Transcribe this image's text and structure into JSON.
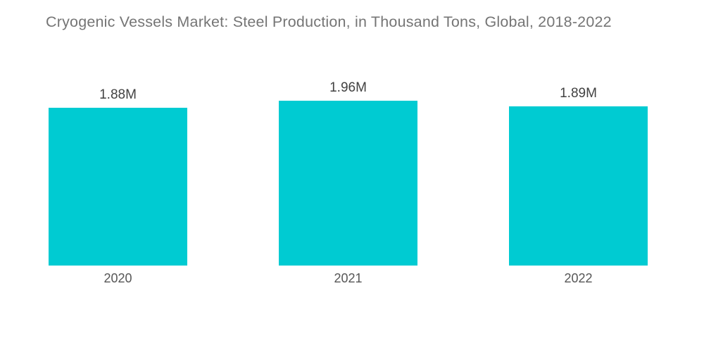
{
  "title": "Cryogenic Vessels Market: Steel Production, in Thousand Tons, Global, 2018-2022",
  "colors": {
    "bar_fill": "#00CBD2",
    "title_text": "#757575",
    "value_text": "#414141",
    "category_text": "#565656",
    "background": "#FFFFFF"
  },
  "chart_data": {
    "type": "bar",
    "title": "Cryogenic Vessels Market: Steel Production, in Thousand Tons, Global, 2018-2022",
    "categories": [
      "2020",
      "2021",
      "2022"
    ],
    "values": [
      1.88,
      1.96,
      1.89
    ],
    "value_labels": [
      "1.88M",
      "1.96M",
      "1.89M"
    ],
    "value_unit": "M",
    "xlabel": "",
    "ylabel": "",
    "ylim": [
      0,
      1.96
    ],
    "grid": false,
    "legend": false,
    "axes_visible": false,
    "bar_label_position": "above"
  }
}
